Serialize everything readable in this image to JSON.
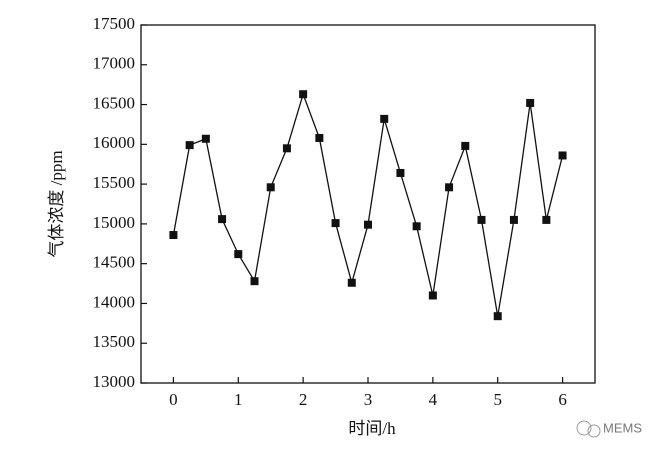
{
  "chart_data": {
    "type": "line",
    "x_label": "时间/h",
    "y_label": "气体浓度 /ppm",
    "watermark": "MEMS",
    "x": [
      0,
      0.25,
      0.5,
      0.75,
      1,
      1.25,
      1.5,
      1.75,
      2,
      2.25,
      2.5,
      2.75,
      3,
      3.25,
      3.5,
      3.75,
      4,
      4.25,
      4.5,
      4.75,
      5,
      5.25,
      5.5,
      5.75,
      6
    ],
    "values": [
      14860,
      15990,
      16070,
      15060,
      14620,
      14280,
      15460,
      15950,
      16630,
      16080,
      15010,
      14260,
      14990,
      16320,
      15640,
      14970,
      14100,
      15460,
      15980,
      15050,
      13840,
      15050,
      16520,
      15050,
      15860
    ],
    "color": "#111111",
    "xlim": [
      -0.5,
      6.5
    ],
    "xticks": [
      0,
      1,
      2,
      3,
      4,
      5,
      6
    ],
    "ylim": [
      13000,
      17500
    ],
    "yticks": [
      13000,
      13500,
      14000,
      14500,
      15000,
      15500,
      16000,
      16500,
      17000,
      17500
    ]
  }
}
